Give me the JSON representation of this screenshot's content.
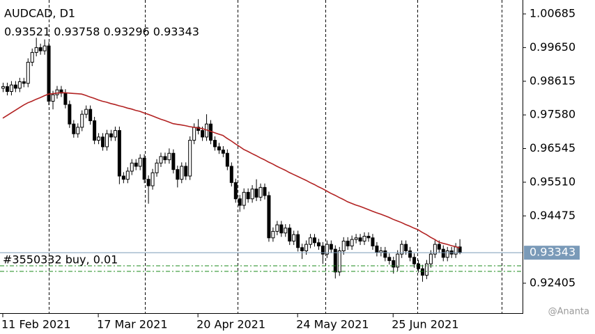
{
  "chart_data": {
    "type": "candlestick",
    "symbol": "AUDCAD, D1",
    "order_label": "#3550332 buy, 0.01",
    "watermark": "@Ananta",
    "ylim": [
      0.91485,
      1.01113
    ],
    "yticks": [
      1.00685,
      {
        "value": 0.9965,
        "label": "0.99650"
      },
      0.98615,
      {
        "value": 0.9758,
        "label": "0.97580"
      },
      0.96545,
      {
        "value": 0.9551,
        "label": "0.95510"
      },
      0.94475,
      0.92405
    ],
    "categories": [
      "11 Feb 2021",
      null,
      null,
      null,
      null,
      null,
      null,
      null,
      null,
      null,
      null,
      null,
      null,
      null,
      null,
      null,
      null,
      null,
      null,
      null,
      null,
      null,
      null,
      "17 Mar 2021",
      null,
      null,
      null,
      null,
      null,
      null,
      null,
      null,
      null,
      null,
      null,
      null,
      null,
      null,
      null,
      null,
      null,
      null,
      null,
      null,
      null,
      null,
      null,
      "20 Apr 2021",
      null,
      null,
      null,
      null,
      null,
      null,
      null,
      null,
      null,
      null,
      null,
      null,
      null,
      null,
      null,
      null,
      null,
      null,
      null,
      null,
      null,
      null,
      null,
      "24 May 2021",
      null,
      null,
      null,
      null,
      null,
      null,
      null,
      null,
      null,
      null,
      null,
      null,
      null,
      null,
      null,
      null,
      null,
      null,
      null,
      null,
      null,
      null,
      "25 Jun 2021",
      null,
      null,
      null,
      null,
      null,
      null,
      null,
      null,
      null,
      null,
      null,
      null,
      null,
      null,
      null,
      null
    ],
    "ohlc": [
      [
        0.984,
        0.9857,
        0.9828,
        0.9845
      ],
      [
        0.9845,
        0.9857,
        0.9818,
        0.983
      ],
      [
        0.983,
        0.9862,
        0.9818,
        0.985
      ],
      [
        0.985,
        0.9862,
        0.9828,
        0.984
      ],
      [
        0.984,
        0.9872,
        0.9828,
        0.986
      ],
      [
        0.986,
        0.9872,
        0.9843,
        0.9855
      ],
      [
        0.9855,
        0.9932,
        0.9843,
        0.992
      ],
      [
        0.992,
        0.9962,
        0.9908,
        0.995
      ],
      [
        0.995,
        0.9995,
        0.9938,
        0.9965
      ],
      [
        0.9965,
        0.9977,
        0.9943,
        0.9955
      ],
      [
        0.9955,
        0.999,
        0.9943,
        0.997
      ],
      [
        0.997,
        0.9982,
        0.9788,
        0.98
      ],
      [
        0.98,
        0.9832,
        0.9775,
        0.982
      ],
      [
        0.982,
        0.9847,
        0.9808,
        0.9835
      ],
      [
        0.9835,
        0.9847,
        0.9813,
        0.9825
      ],
      [
        0.9825,
        0.9837,
        0.9778,
        0.979
      ],
      [
        0.979,
        0.9802,
        0.9718,
        0.973
      ],
      [
        0.973,
        0.9742,
        0.9688,
        0.97
      ],
      [
        0.97,
        0.9732,
        0.9688,
        0.972
      ],
      [
        0.972,
        0.9772,
        0.9708,
        0.976
      ],
      [
        0.976,
        0.9787,
        0.9748,
        0.9775
      ],
      [
        0.9775,
        0.9787,
        0.9728,
        0.974
      ],
      [
        0.974,
        0.9752,
        0.9668,
        0.968
      ],
      [
        0.968,
        0.9702,
        0.9668,
        0.969
      ],
      [
        0.969,
        0.9702,
        0.9648,
        0.966
      ],
      [
        0.966,
        0.9712,
        0.9648,
        0.97
      ],
      [
        0.97,
        0.9712,
        0.9678,
        0.969
      ],
      [
        0.969,
        0.9722,
        0.9678,
        0.971
      ],
      [
        0.971,
        0.9722,
        0.9545,
        0.957
      ],
      [
        0.957,
        0.9582,
        0.9548,
        0.956
      ],
      [
        0.956,
        0.9597,
        0.9548,
        0.9585
      ],
      [
        0.9585,
        0.9622,
        0.9573,
        0.961
      ],
      [
        0.961,
        0.9622,
        0.9588,
        0.96
      ],
      [
        0.96,
        0.9637,
        0.9588,
        0.9625
      ],
      [
        0.9625,
        0.9637,
        0.9548,
        0.956
      ],
      [
        0.956,
        0.9572,
        0.9485,
        0.954
      ],
      [
        0.954,
        0.9592,
        0.9528,
        0.958
      ],
      [
        0.958,
        0.9622,
        0.9568,
        0.961
      ],
      [
        0.961,
        0.9642,
        0.9598,
        0.963
      ],
      [
        0.963,
        0.9642,
        0.9608,
        0.962
      ],
      [
        0.962,
        0.9655,
        0.9608,
        0.964
      ],
      [
        0.964,
        0.9652,
        0.9578,
        0.959
      ],
      [
        0.959,
        0.9602,
        0.9535,
        0.956
      ],
      [
        0.956,
        0.9612,
        0.9548,
        0.96
      ],
      [
        0.96,
        0.9612,
        0.9558,
        0.957
      ],
      [
        0.957,
        0.9692,
        0.9558,
        0.968
      ],
      [
        0.968,
        0.9732,
        0.9668,
        0.972
      ],
      [
        0.972,
        0.9745,
        0.9698,
        0.971
      ],
      [
        0.971,
        0.9722,
        0.9678,
        0.969
      ],
      [
        0.969,
        0.976,
        0.9678,
        0.973
      ],
      [
        0.973,
        0.9742,
        0.9668,
        0.968
      ],
      [
        0.968,
        0.9692,
        0.9648,
        0.966
      ],
      [
        0.966,
        0.9672,
        0.9638,
        0.965
      ],
      [
        0.965,
        0.9662,
        0.9628,
        0.964
      ],
      [
        0.964,
        0.9652,
        0.9588,
        0.96
      ],
      [
        0.96,
        0.9612,
        0.9538,
        0.955
      ],
      [
        0.955,
        0.9562,
        0.9488,
        0.95
      ],
      [
        0.95,
        0.9512,
        0.946,
        0.948
      ],
      [
        0.948,
        0.9532,
        0.9468,
        0.952
      ],
      [
        0.952,
        0.9532,
        0.9488,
        0.95
      ],
      [
        0.95,
        0.9542,
        0.9488,
        0.953
      ],
      [
        0.953,
        0.956,
        0.9493,
        0.9505
      ],
      [
        0.9505,
        0.9547,
        0.9493,
        0.9535
      ],
      [
        0.9535,
        0.9547,
        0.9498,
        0.951
      ],
      [
        0.951,
        0.9522,
        0.9368,
        0.938
      ],
      [
        0.938,
        0.9412,
        0.9368,
        0.94
      ],
      [
        0.94,
        0.9432,
        0.9388,
        0.942
      ],
      [
        0.942,
        0.9432,
        0.9383,
        0.9395
      ],
      [
        0.9395,
        0.9422,
        0.9383,
        0.941
      ],
      [
        0.941,
        0.9422,
        0.9358,
        0.937
      ],
      [
        0.937,
        0.9402,
        0.9358,
        0.939
      ],
      [
        0.939,
        0.9402,
        0.9338,
        0.935
      ],
      [
        0.935,
        0.9362,
        0.9315,
        0.934
      ],
      [
        0.934,
        0.9372,
        0.9328,
        0.936
      ],
      [
        0.936,
        0.9392,
        0.9348,
        0.938
      ],
      [
        0.938,
        0.9392,
        0.9353,
        0.9365
      ],
      [
        0.9365,
        0.9377,
        0.9343,
        0.9355
      ],
      [
        0.9355,
        0.9367,
        0.93,
        0.933
      ],
      [
        0.933,
        0.9372,
        0.9318,
        0.936
      ],
      [
        0.936,
        0.9372,
        0.9333,
        0.9345
      ],
      [
        0.9345,
        0.9357,
        0.9255,
        0.9275
      ],
      [
        0.9275,
        0.9352,
        0.9263,
        0.934
      ],
      [
        0.934,
        0.9382,
        0.9328,
        0.937
      ],
      [
        0.937,
        0.9382,
        0.9343,
        0.9355
      ],
      [
        0.9355,
        0.9387,
        0.9343,
        0.9375
      ],
      [
        0.9375,
        0.9392,
        0.9363,
        0.938
      ],
      [
        0.938,
        0.9392,
        0.9358,
        0.937
      ],
      [
        0.937,
        0.9397,
        0.9358,
        0.9385
      ],
      [
        0.9385,
        0.9397,
        0.9368,
        0.938
      ],
      [
        0.938,
        0.9392,
        0.9343,
        0.9355
      ],
      [
        0.9355,
        0.9367,
        0.9323,
        0.9335
      ],
      [
        0.9335,
        0.9352,
        0.9323,
        0.934
      ],
      [
        0.934,
        0.9352,
        0.9308,
        0.932
      ],
      [
        0.932,
        0.9332,
        0.9298,
        0.931
      ],
      [
        0.931,
        0.9322,
        0.927,
        0.929
      ],
      [
        0.929,
        0.9342,
        0.9278,
        0.933
      ],
      [
        0.933,
        0.9372,
        0.9318,
        0.936
      ],
      [
        0.936,
        0.9372,
        0.9328,
        0.934
      ],
      [
        0.934,
        0.9352,
        0.9308,
        0.932
      ],
      [
        0.932,
        0.9332,
        0.9288,
        0.93
      ],
      [
        0.93,
        0.9312,
        0.9273,
        0.9285
      ],
      [
        0.9285,
        0.9297,
        0.9245,
        0.9265
      ],
      [
        0.9265,
        0.9312,
        0.9253,
        0.93
      ],
      [
        0.93,
        0.9342,
        0.9288,
        0.933
      ],
      [
        0.933,
        0.9372,
        0.9318,
        0.936
      ],
      [
        0.936,
        0.9372,
        0.9333,
        0.9345
      ],
      [
        0.9345,
        0.9357,
        0.9308,
        0.932
      ],
      [
        0.932,
        0.9352,
        0.9308,
        0.934
      ],
      [
        0.934,
        0.9352,
        0.9318,
        0.933
      ],
      [
        0.933,
        0.9364,
        0.9318,
        0.93521
      ],
      [
        0.93521,
        0.93758,
        0.93296,
        0.93343
      ]
    ],
    "ma": {
      "color": "#b22222",
      "values": [
        0.9748,
        0.9756,
        0.9764,
        0.9772,
        0.978,
        0.9788,
        0.9795,
        0.98,
        0.9806,
        0.9811,
        0.9817,
        0.9822,
        0.9823,
        0.9825,
        0.9826,
        0.9826,
        0.9825,
        0.9824,
        0.9823,
        0.9822,
        0.9818,
        0.9813,
        0.9809,
        0.9804,
        0.98,
        0.9797,
        0.9793,
        0.979,
        0.9786,
        0.9783,
        0.9779,
        0.9776,
        0.9772,
        0.9769,
        0.9764,
        0.976,
        0.9755,
        0.975,
        0.9745,
        0.9741,
        0.9736,
        0.9731,
        0.9729,
        0.9727,
        0.9725,
        0.9722,
        0.972,
        0.9718,
        0.9716,
        0.9712,
        0.9708,
        0.9703,
        0.9699,
        0.9695,
        0.9686,
        0.9678,
        0.9669,
        0.9661,
        0.9652,
        0.9646,
        0.9639,
        0.9633,
        0.9626,
        0.962,
        0.9613,
        0.9607,
        0.96,
        0.9594,
        0.9588,
        0.9581,
        0.9575,
        0.9569,
        0.9563,
        0.9557,
        0.955,
        0.9544,
        0.9537,
        0.9531,
        0.9524,
        0.9517,
        0.9511,
        0.9504,
        0.9498,
        0.9491,
        0.9486,
        0.9481,
        0.9477,
        0.9472,
        0.9467,
        0.9462,
        0.9457,
        0.9453,
        0.9448,
        0.9443,
        0.9437,
        0.9432,
        0.9427,
        0.9421,
        0.9416,
        0.941,
        0.9405,
        0.9397,
        0.939,
        0.9382,
        0.9375,
        0.9367,
        0.9363,
        0.936,
        0.9356,
        0.9353,
        0.9349
      ]
    },
    "order_lines": [
      0.9294,
      0.9277
    ]
  }
}
